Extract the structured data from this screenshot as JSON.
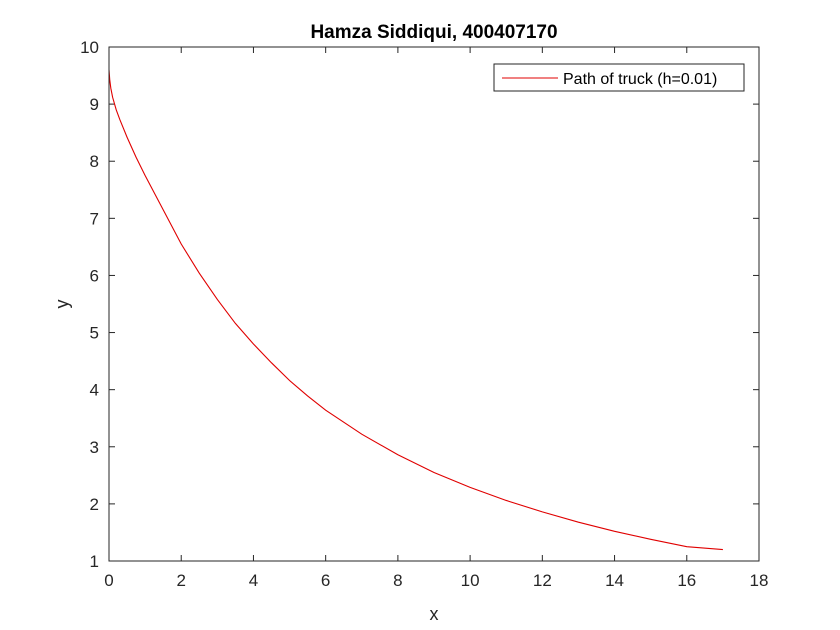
{
  "chart_data": {
    "type": "line",
    "title": "Hamza Siddiqui, 400407170",
    "xlabel": "x",
    "ylabel": "y",
    "xlim": [
      0,
      18
    ],
    "ylim": [
      1,
      10
    ],
    "xticks": [
      0,
      2,
      4,
      6,
      8,
      10,
      12,
      14,
      16,
      18
    ],
    "yticks": [
      1,
      2,
      3,
      4,
      5,
      6,
      7,
      8,
      9,
      10
    ],
    "xtick_labels": [
      "0",
      "2",
      "4",
      "6",
      "8",
      "10",
      "12",
      "14",
      "16",
      "18"
    ],
    "ytick_labels": [
      "1",
      "2",
      "3",
      "4",
      "5",
      "6",
      "7",
      "8",
      "9",
      "10"
    ],
    "grid": false,
    "legend_position": "top-right",
    "series": [
      {
        "name": "Path of truck (h=0.01)",
        "color": "#e00000",
        "x": [
          0,
          0.02,
          0.05,
          0.1,
          0.2,
          0.3,
          0.5,
          0.75,
          1.0,
          1.5,
          2.0,
          2.5,
          3.0,
          3.5,
          4.0,
          4.5,
          5.0,
          5.5,
          6.0,
          7.0,
          8.0,
          9.0,
          10.0,
          11.0,
          12.0,
          13.0,
          14.0,
          15.0,
          16.0,
          17.0
        ],
        "y": [
          9.6,
          9.43,
          9.28,
          9.12,
          8.9,
          8.73,
          8.42,
          8.07,
          7.75,
          7.15,
          6.55,
          6.04,
          5.58,
          5.16,
          4.8,
          4.47,
          4.16,
          3.89,
          3.64,
          3.22,
          2.86,
          2.55,
          2.29,
          2.06,
          1.86,
          1.68,
          1.52,
          1.38,
          1.25,
          1.2
        ]
      }
    ]
  }
}
